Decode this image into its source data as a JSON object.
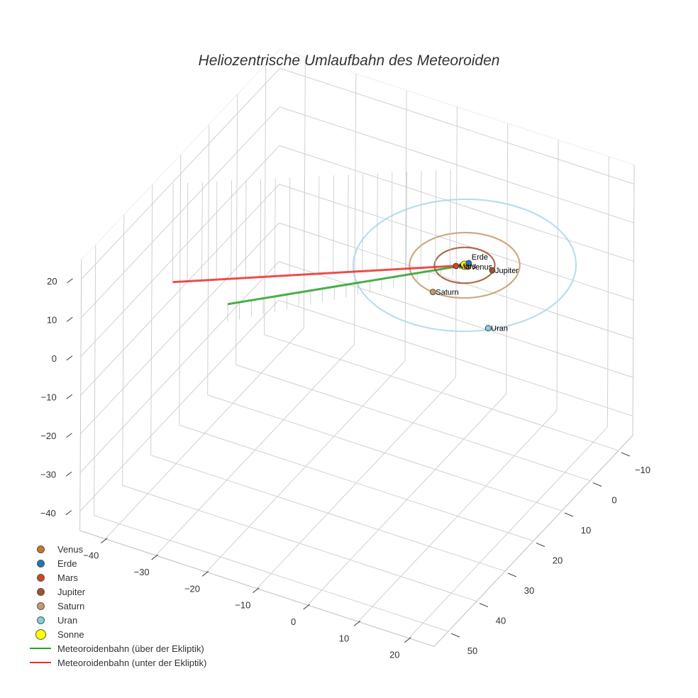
{
  "title": "Heliozentrische Umlaufbahn des Meteoroiden",
  "legend": {
    "items": [
      {
        "label": "Venus",
        "type": "marker",
        "color": "#c77a1a",
        "size": 9
      },
      {
        "label": "Erde",
        "type": "marker",
        "color": "#1f77b4",
        "size": 9
      },
      {
        "label": "Mars",
        "type": "marker",
        "color": "#d2451e",
        "size": 9
      },
      {
        "label": "Jupiter",
        "type": "marker",
        "color": "#a0522d",
        "size": 9
      },
      {
        "label": "Saturn",
        "type": "marker",
        "color": "#c49a6c",
        "size": 9
      },
      {
        "label": "Uran",
        "type": "marker",
        "color": "#87cde0",
        "size": 9
      },
      {
        "label": "Sonne",
        "type": "marker",
        "color": "#ffff00",
        "size": 13
      },
      {
        "label": "Meteoroidenbahn (über der Ekliptik)",
        "type": "line",
        "color": "#2ca02c"
      },
      {
        "label": "Meteoroidenbahn (unter der Ekliptik)",
        "type": "line",
        "color": "#e8302b"
      }
    ]
  },
  "axes": {
    "z_ticks": [
      "20",
      "10",
      "0",
      "−10",
      "−20",
      "−30",
      "−40"
    ],
    "x_ticks": [
      "−40",
      "−30",
      "−20",
      "−10",
      "0",
      "10",
      "20"
    ],
    "y_ticks": [
      "−10",
      "0",
      "10",
      "20",
      "30",
      "40",
      "50"
    ]
  },
  "chart_data": {
    "type": "scatter3d",
    "title": "Heliozentrische Umlaufbahn des Meteoroiden",
    "axis_ranges": {
      "x": [
        -45,
        25
      ],
      "y": [
        -15,
        55
      ],
      "z": [
        -45,
        25
      ]
    },
    "grid": true,
    "legend_position": "bottom-left",
    "bodies": [
      {
        "name": "Sonne",
        "x": 0,
        "y": 0,
        "z": 0,
        "color": "#ffff00"
      },
      {
        "name": "Venus",
        "x": 0.7,
        "y": 0.1,
        "z": 0,
        "color": "#c77a1a"
      },
      {
        "name": "Erde",
        "x": 0.3,
        "y": -0.9,
        "z": 0,
        "color": "#1f77b4"
      },
      {
        "name": "Mars",
        "x": -1.2,
        "y": 0.9,
        "z": 0,
        "color": "#d2451e"
      },
      {
        "name": "Jupiter",
        "x": 4.9,
        "y": -1.0,
        "z": 0,
        "color": "#a0522d"
      },
      {
        "name": "Saturn",
        "x": -1.0,
        "y": 9.4,
        "z": 0,
        "color": "#c49a6c"
      },
      {
        "name": "Uran",
        "x": 12.5,
        "y": 14.0,
        "z": 0,
        "color": "#87cde0"
      }
    ],
    "orbits": [
      {
        "name": "Jupiter",
        "radius": 5.2,
        "color": "#a0522d"
      },
      {
        "name": "Saturn",
        "radius": 9.5,
        "color": "#c49a6c"
      },
      {
        "name": "Uran",
        "radius": 19.2,
        "color": "#add8e6"
      }
    ],
    "series": [
      {
        "name": "Meteoroidenbahn (über der Ekliptik)",
        "color": "#2ca02c",
        "start": [
          0,
          0,
          0
        ],
        "end": [
          -30,
          30,
          0.5
        ]
      },
      {
        "name": "Meteoroidenbahn (unter der Ekliptik)",
        "color": "#e8302b",
        "start": [
          0,
          0,
          0
        ],
        "end": [
          -42,
          28,
          -0.5
        ]
      }
    ]
  }
}
